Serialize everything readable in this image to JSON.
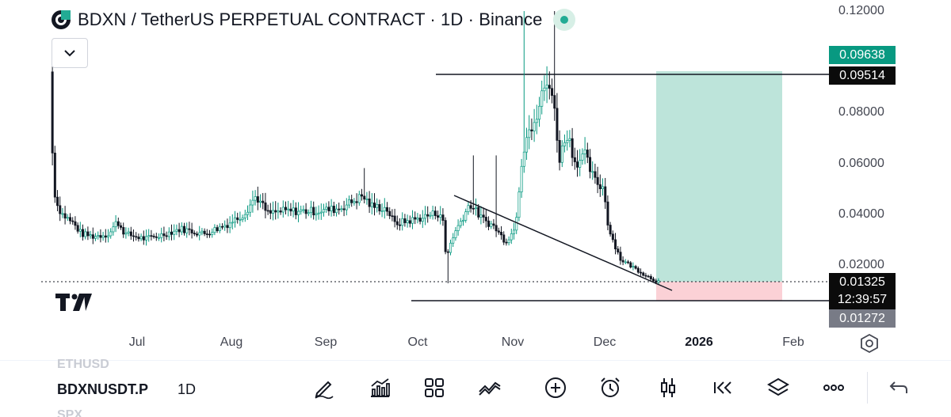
{
  "header": {
    "title": "BDXN / TetherUS PERPETUAL CONTRACT · 1D · Binance",
    "collapse_icon": "chevron-down-icon",
    "status": "market-open"
  },
  "price_axis": {
    "ticks": [
      "0.12000",
      "0.08000",
      "0.06000",
      "0.04000",
      "0.02000"
    ]
  },
  "price_tags": {
    "target": "0.09638",
    "line": "0.09514",
    "current": "0.01325",
    "countdown": "12:39:57",
    "stop": "0.01272"
  },
  "time_axis": {
    "labels": [
      "Jul",
      "Aug",
      "Sep",
      "Oct",
      "Nov",
      "Dec",
      "2026",
      "Feb"
    ]
  },
  "toolbar": {
    "ghost_top": "ETHUSD",
    "symbol": "BDXNUSDT.P",
    "interval": "1D",
    "ghost_bottom": "SPX",
    "tools": [
      "pencil-icon",
      "indicators-icon",
      "layouts-icon",
      "trend-icon",
      "plus-circle-icon",
      "alarm-icon",
      "candles-icon",
      "replay-icon",
      "layers-icon",
      "more-icon",
      "undo-icon"
    ]
  },
  "colors": {
    "up": "#089981",
    "down": "#131722",
    "profit_zone": "#b2dfd4",
    "loss_zone": "#fbd1d6",
    "accent": "#22ab94"
  }
}
